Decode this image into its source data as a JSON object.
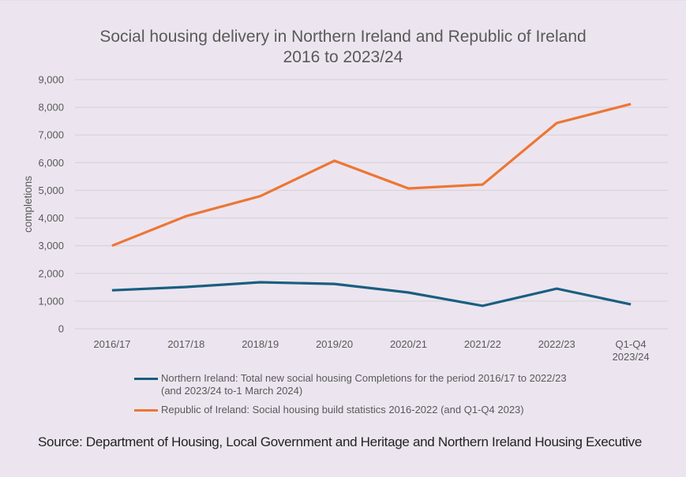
{
  "chart_data": {
    "type": "line",
    "title": "Social housing delivery in Northern Ireland and Republic of Ireland",
    "subtitle": "2016 to 2023/24",
    "xlabel": "",
    "ylabel": "completions",
    "ylim": [
      0,
      9000
    ],
    "yticks": [
      0,
      1000,
      2000,
      3000,
      4000,
      5000,
      6000,
      7000,
      8000,
      9000
    ],
    "ytick_labels": [
      "0",
      "1,000",
      "2,000",
      "3,000",
      "4,000",
      "5,000",
      "6,000",
      "7,000",
      "8,000",
      "9,000"
    ],
    "grid": true,
    "legend_position": "bottom",
    "categories": [
      "2016/17",
      "2017/18",
      "2018/19",
      "2019/20",
      "2020/21",
      "2021/22",
      "2022/23",
      "Q1-Q4 2023/24"
    ],
    "category_labels": [
      [
        "2016/17"
      ],
      [
        "2017/18"
      ],
      [
        "2018/19"
      ],
      [
        "2019/20"
      ],
      [
        "2020/21"
      ],
      [
        "2021/22"
      ],
      [
        "2022/23"
      ],
      [
        "Q1-Q4",
        "2023/24"
      ]
    ],
    "series": [
      {
        "name": "Northern Ireland: Total new social housing Completions for the period 2016/17 to 2022/23 (and 2023/24 to-1 March 2024)",
        "color": "#1a5e80",
        "values": [
          1390,
          1510,
          1680,
          1620,
          1310,
          830,
          1450,
          880
        ]
      },
      {
        "name": "Republic of Ireland: Social housing build statistics 2016-2022 (and Q1-Q4 2023)",
        "color": "#ed7634",
        "values": [
          3000,
          4070,
          4790,
          6070,
          5070,
          5210,
          7430,
          8120
        ]
      }
    ]
  },
  "legend": {
    "items": [
      {
        "label": "Northern Ireland: Total new social housing Completions for the period 2016/17 to 2022/23 (and 2023/24 to-1 March 2024)",
        "color": "#1a5e80"
      },
      {
        "label": "Republic of Ireland: Social housing build statistics 2016-2022 (and Q1-Q4 2023)",
        "color": "#ed7634"
      }
    ]
  },
  "source": "Source: Department of Housing, Local Government and Heritage and Northern Ireland Housing Executive"
}
